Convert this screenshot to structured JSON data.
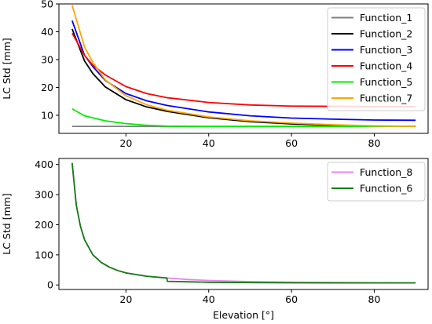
{
  "chart_data": [
    {
      "type": "line",
      "title": "",
      "xlabel": "",
      "ylabel": "LC Std [mm]",
      "xlim": [
        3.8,
        93
      ],
      "ylim": [
        3.5,
        50
      ],
      "xticks": [
        20,
        40,
        60,
        80
      ],
      "yticks": [
        10,
        20,
        30,
        40,
        50
      ],
      "grid": false,
      "legend_position": "top-right",
      "series": [
        {
          "name": "Function_1",
          "color": "#808080",
          "x": [
            7,
            10,
            15,
            20,
            30,
            40,
            50,
            60,
            70,
            80,
            90
          ],
          "y": [
            6,
            6,
            6,
            6,
            6,
            6,
            6,
            6,
            6,
            6,
            6
          ]
        },
        {
          "name": "Function_2",
          "color": "#000000",
          "x": [
            7,
            10,
            12,
            15,
            20,
            25,
            30,
            40,
            50,
            60,
            70,
            80,
            90
          ],
          "y": [
            41,
            29.5,
            25,
            20.2,
            15.6,
            13,
            11.4,
            9.1,
            7.7,
            6.9,
            6.4,
            6.1,
            6.0
          ]
        },
        {
          "name": "Function_3",
          "color": "#0000ff",
          "x": [
            7,
            10,
            12,
            15,
            20,
            25,
            30,
            40,
            50,
            60,
            70,
            80,
            90
          ],
          "y": [
            44,
            31.5,
            27.5,
            22.5,
            17.8,
            15.2,
            13.5,
            11.2,
            9.8,
            9,
            8.6,
            8.3,
            8.2
          ]
        },
        {
          "name": "Function_4",
          "color": "#ff0000",
          "x": [
            7,
            10,
            12,
            15,
            20,
            25,
            30,
            40,
            50,
            60,
            70,
            80,
            90
          ],
          "y": [
            39.5,
            31.5,
            28,
            24.5,
            20.3,
            17.8,
            16.3,
            14.6,
            13.7,
            13.3,
            13.2,
            13.1,
            13.1
          ]
        },
        {
          "name": "Function_5",
          "color": "#00ee00",
          "x": [
            7,
            10,
            15,
            20,
            25,
            30,
            40,
            50,
            60,
            70,
            80,
            90
          ],
          "y": [
            12.3,
            9.8,
            8,
            7,
            6.4,
            6.1,
            6,
            6,
            6,
            6,
            6,
            6
          ]
        },
        {
          "name": "Function_7",
          "color": "#ffa500",
          "x": [
            7,
            10,
            12,
            15,
            20,
            25,
            30,
            40,
            50,
            60,
            70,
            80,
            90
          ],
          "y": [
            49.5,
            34.5,
            29,
            22.7,
            17,
            13.8,
            11.8,
            9.4,
            8,
            7.2,
            6.6,
            6.2,
            6
          ]
        }
      ]
    },
    {
      "type": "line",
      "title": "",
      "xlabel": "Elevation [°]",
      "ylabel": "LC Std [mm]",
      "xlim": [
        3.8,
        93
      ],
      "ylim": [
        -15,
        420
      ],
      "xticks": [
        20,
        40,
        60,
        80
      ],
      "yticks": [
        0,
        100,
        200,
        300,
        400
      ],
      "grid": false,
      "legend_position": "top-right",
      "series": [
        {
          "name": "Function_8",
          "color": "#ee82ee",
          "x": [
            7,
            8,
            9,
            10,
            12,
            14,
            16,
            18,
            20,
            25,
            30,
            35,
            40,
            50,
            60,
            70,
            80,
            90
          ],
          "y": [
            405,
            265,
            195,
            150,
            100,
            75,
            59,
            48,
            40,
            29,
            23,
            18,
            15,
            11,
            9,
            8,
            7.5,
            7
          ]
        },
        {
          "name": "Function_6",
          "color": "#117f11",
          "x": [
            7,
            8,
            9,
            10,
            12,
            14,
            16,
            18,
            20,
            25,
            29.9,
            30,
            35,
            40,
            50,
            60,
            70,
            80,
            90
          ],
          "y": [
            405,
            265,
            195,
            150,
            100,
            75,
            59,
            48,
            40,
            29,
            23,
            12,
            10.5,
            9,
            8,
            7.3,
            7,
            6.9,
            6.8
          ]
        }
      ]
    }
  ]
}
